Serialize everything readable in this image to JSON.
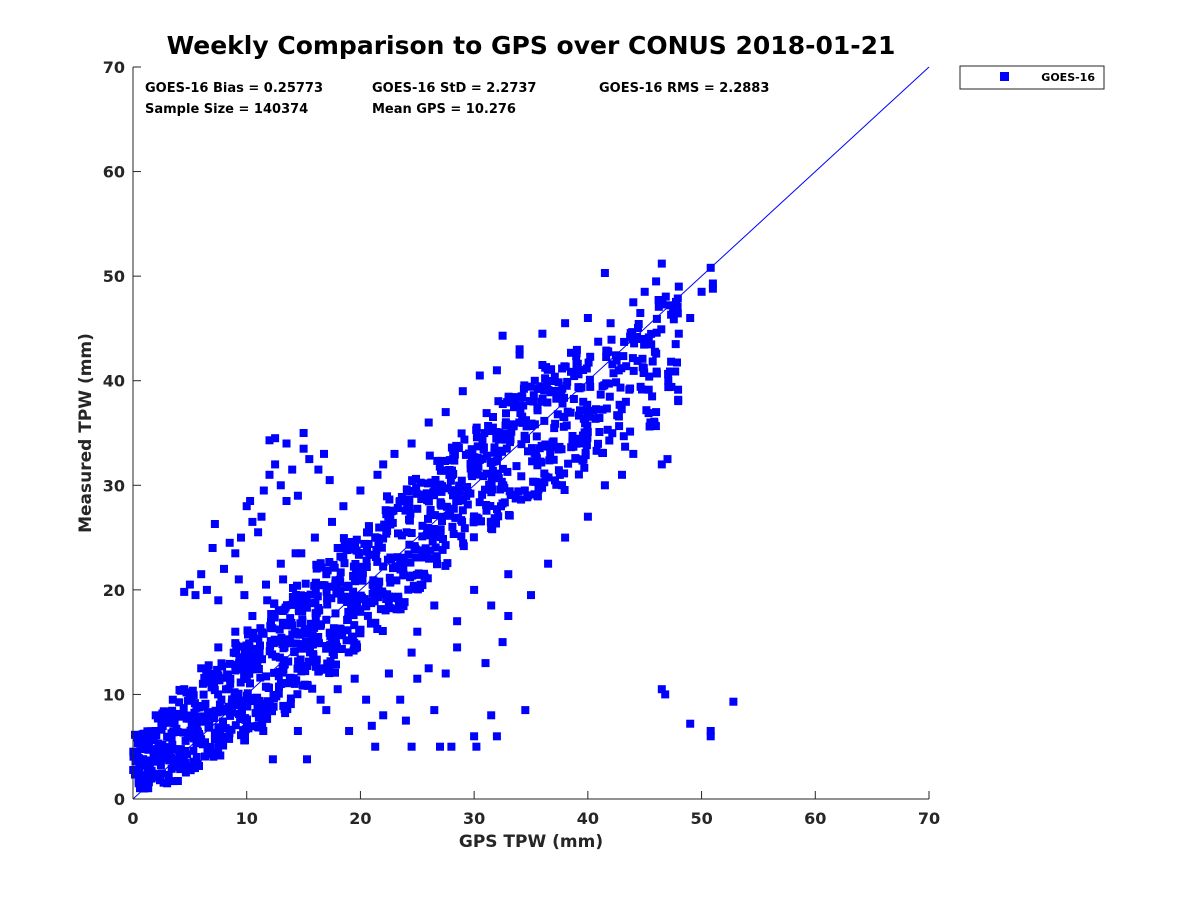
{
  "chart_data": {
    "type": "scatter",
    "title": "Weekly Comparison to GPS over CONUS 2018-01-21",
    "xlabel": "GPS TPW (mm)",
    "ylabel": "Measured TPW (mm)",
    "xlim": [
      0,
      70
    ],
    "ylim": [
      0,
      70
    ],
    "xticks": [
      "0",
      "10",
      "20",
      "30",
      "40",
      "50",
      "60",
      "70"
    ],
    "yticks": [
      "0",
      "10",
      "20",
      "30",
      "40",
      "50",
      "60",
      "70"
    ],
    "grid": false,
    "legend_position": "outside top-right",
    "marker": "square",
    "color": "#0000ff",
    "reference_line": {
      "x": [
        0,
        70
      ],
      "y": [
        0,
        70
      ],
      "color": "#0000ff"
    },
    "annotations": {
      "bias": "GOES-16 Bias = 0.25773",
      "std": "GOES-16 StD = 2.2737",
      "rms": "GOES-16 RMS = 2.2883",
      "sample_size": "Sample Size = 140374",
      "mean_gps": "Mean GPS = 10.276"
    },
    "series": [
      {
        "name": "GOES-16",
        "density_core": [
          {
            "x": 1,
            "y_low": 1.0,
            "y_high": 6.5
          },
          {
            "x": 3,
            "y_low": 1.5,
            "y_high": 8.5
          },
          {
            "x": 5,
            "y_low": 2.5,
            "y_high": 10.5
          },
          {
            "x": 7,
            "y_low": 4.0,
            "y_high": 13.0
          },
          {
            "x": 9,
            "y_low": 5.5,
            "y_high": 15.0
          },
          {
            "x": 11,
            "y_low": 6.5,
            "y_high": 17.0
          },
          {
            "x": 13,
            "y_low": 8.0,
            "y_high": 19.0
          },
          {
            "x": 15,
            "y_low": 10.0,
            "y_high": 21.0
          },
          {
            "x": 17,
            "y_low": 12.0,
            "y_high": 23.0
          },
          {
            "x": 19,
            "y_low": 14.0,
            "y_high": 25.0
          },
          {
            "x": 21,
            "y_low": 16.0,
            "y_high": 27.0
          },
          {
            "x": 23,
            "y_low": 18.0,
            "y_high": 29.0
          },
          {
            "x": 25,
            "y_low": 20.0,
            "y_high": 31.0
          },
          {
            "x": 27,
            "y_low": 22.0,
            "y_high": 33.0
          },
          {
            "x": 29,
            "y_low": 24.0,
            "y_high": 35.0
          },
          {
            "x": 31,
            "y_low": 25.5,
            "y_high": 37.0
          },
          {
            "x": 33,
            "y_low": 27.0,
            "y_high": 38.5
          },
          {
            "x": 35,
            "y_low": 28.5,
            "y_high": 40.0
          },
          {
            "x": 37,
            "y_low": 29.5,
            "y_high": 41.5
          },
          {
            "x": 39,
            "y_low": 31.0,
            "y_high": 43.0
          },
          {
            "x": 41,
            "y_low": 32.0,
            "y_high": 44.0
          },
          {
            "x": 43,
            "y_low": 33.5,
            "y_high": 45.0
          },
          {
            "x": 45,
            "y_low": 35.0,
            "y_high": 47.0
          },
          {
            "x": 47,
            "y_low": 38.0,
            "y_high": 48.5
          }
        ],
        "points": [
          [
            0.5,
            1.5
          ],
          [
            1.0,
            1.0
          ],
          [
            1.5,
            2.5
          ],
          [
            2.0,
            6.5
          ],
          [
            2.5,
            7.0
          ],
          [
            3.0,
            1.5
          ],
          [
            4.5,
            19.8
          ],
          [
            5.0,
            20.5
          ],
          [
            5.5,
            19.5
          ],
          [
            6.0,
            21.5
          ],
          [
            6.5,
            20.0
          ],
          [
            7.0,
            24.0
          ],
          [
            7.2,
            26.3
          ],
          [
            7.5,
            19.0
          ],
          [
            8.0,
            22.0
          ],
          [
            8.5,
            24.5
          ],
          [
            9.0,
            23.5
          ],
          [
            9.3,
            21.0
          ],
          [
            9.5,
            25.0
          ],
          [
            9.8,
            19.5
          ],
          [
            10.0,
            28.0
          ],
          [
            10.3,
            28.5
          ],
          [
            10.5,
            26.5
          ],
          [
            11.0,
            25.5
          ],
          [
            11.3,
            27.0
          ],
          [
            11.5,
            29.5
          ],
          [
            11.7,
            20.5
          ],
          [
            12.0,
            31.0
          ],
          [
            12.0,
            34.3
          ],
          [
            12.5,
            34.5
          ],
          [
            12.5,
            32.0
          ],
          [
            13.0,
            30.0
          ],
          [
            13.0,
            22.5
          ],
          [
            13.5,
            34.0
          ],
          [
            13.5,
            28.5
          ],
          [
            14.0,
            31.5
          ],
          [
            14.5,
            29.0
          ],
          [
            14.3,
            23.5
          ],
          [
            15.0,
            35.0
          ],
          [
            15.0,
            33.5
          ],
          [
            15.5,
            32.5
          ],
          [
            16.3,
            31.5
          ],
          [
            16.8,
            33.0
          ],
          [
            17.3,
            30.5
          ],
          [
            17.0,
            21.5
          ],
          [
            18.0,
            24.0
          ],
          [
            12.3,
            3.8
          ],
          [
            14.5,
            6.5
          ],
          [
            15.3,
            3.8
          ],
          [
            16.5,
            9.5
          ],
          [
            17.0,
            8.5
          ],
          [
            18.0,
            10.5
          ],
          [
            19.0,
            6.5
          ],
          [
            19.5,
            11.5
          ],
          [
            20.5,
            9.5
          ],
          [
            21.0,
            7.0
          ],
          [
            21.3,
            5.0
          ],
          [
            22.0,
            8.0
          ],
          [
            22.5,
            12.0
          ],
          [
            23.5,
            9.5
          ],
          [
            24.0,
            7.5
          ],
          [
            24.5,
            5.0
          ],
          [
            24.5,
            14.0
          ],
          [
            25.0,
            11.5
          ],
          [
            26.0,
            12.5
          ],
          [
            26.5,
            8.5
          ],
          [
            27.0,
            5.0
          ],
          [
            27.5,
            12.0
          ],
          [
            28.0,
            5.0
          ],
          [
            28.5,
            14.5
          ],
          [
            30.0,
            6.0
          ],
          [
            30.2,
            5.0
          ],
          [
            31.0,
            13.0
          ],
          [
            31.5,
            8.0
          ],
          [
            32.0,
            6.0
          ],
          [
            32.5,
            15.0
          ],
          [
            34.5,
            8.5
          ],
          [
            33.0,
            17.5
          ],
          [
            35.0,
            19.5
          ],
          [
            46.5,
            10.5
          ],
          [
            46.8,
            10.0
          ],
          [
            49.0,
            7.2
          ],
          [
            50.8,
            6.5
          ],
          [
            50.8,
            6.0
          ],
          [
            52.8,
            9.3
          ],
          [
            41.5,
            50.3
          ],
          [
            46.5,
            51.2
          ],
          [
            48.0,
            49.0
          ],
          [
            50.0,
            48.5
          ],
          [
            50.8,
            50.8
          ],
          [
            51.0,
            49.3
          ],
          [
            51.0,
            48.8
          ],
          [
            47.5,
            47.0
          ],
          [
            46.0,
            49.5
          ],
          [
            45.0,
            48.5
          ],
          [
            32.5,
            44.3
          ],
          [
            34.0,
            42.5
          ],
          [
            36.0,
            41.5
          ],
          [
            40.0,
            46.0
          ],
          [
            42.0,
            45.5
          ],
          [
            44.0,
            47.5
          ],
          [
            48.0,
            44.5
          ],
          [
            49.0,
            46.0
          ],
          [
            46.0,
            37.0
          ],
          [
            47.0,
            32.5
          ],
          [
            46.5,
            32.0
          ],
          [
            45.5,
            36.0
          ],
          [
            36.5,
            22.5
          ],
          [
            38.0,
            25.0
          ],
          [
            40.0,
            27.0
          ],
          [
            41.5,
            30.0
          ],
          [
            43.0,
            31.0
          ],
          [
            44.0,
            33.0
          ],
          [
            30.0,
            20.0
          ],
          [
            31.5,
            18.5
          ],
          [
            33.0,
            21.5
          ],
          [
            28.5,
            17.0
          ],
          [
            26.5,
            18.5
          ],
          [
            25.0,
            16.0
          ],
          [
            22.0,
            32.0
          ],
          [
            23.0,
            33.0
          ],
          [
            24.5,
            34.0
          ],
          [
            26.0,
            36.0
          ],
          [
            27.5,
            37.0
          ],
          [
            29.0,
            39.0
          ],
          [
            30.5,
            40.5
          ],
          [
            32.0,
            41.0
          ],
          [
            34.0,
            43.0
          ],
          [
            36.0,
            44.5
          ],
          [
            38.0,
            45.5
          ],
          [
            21.5,
            31.0
          ],
          [
            20.0,
            29.5
          ],
          [
            18.5,
            28.0
          ],
          [
            17.5,
            26.5
          ],
          [
            16.0,
            25.0
          ],
          [
            14.8,
            23.5
          ],
          [
            13.2,
            21.0
          ],
          [
            11.8,
            19.0
          ],
          [
            10.5,
            17.5
          ],
          [
            9.0,
            16.0
          ],
          [
            7.5,
            14.5
          ],
          [
            6.0,
            12.5
          ],
          [
            4.5,
            10.5
          ],
          [
            3.5,
            9.5
          ],
          [
            2.0,
            8.0
          ]
        ]
      }
    ]
  }
}
